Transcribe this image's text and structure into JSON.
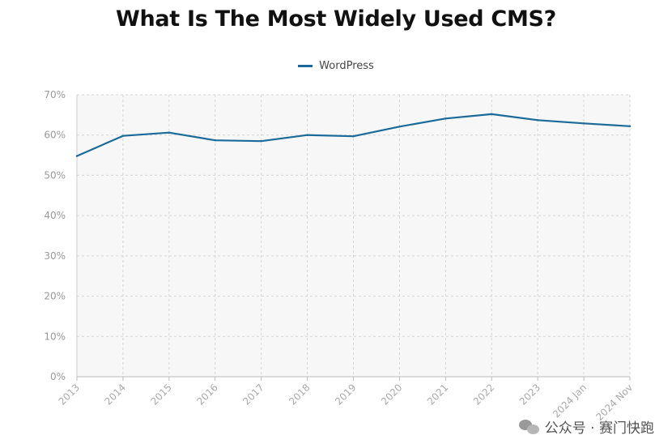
{
  "chart_data": {
    "type": "line",
    "title": "What Is The Most Widely Used CMS?",
    "categories": [
      "2013",
      "2014",
      "2015",
      "2016",
      "2017",
      "2018",
      "2019",
      "2020",
      "2021",
      "2022",
      "2023",
      "2024 Jan",
      "2024 Nov"
    ],
    "series": [
      {
        "name": "WordPress",
        "values": [
          54.8,
          59.8,
          60.6,
          58.7,
          58.5,
          60.0,
          59.7,
          62.1,
          64.1,
          65.2,
          63.7,
          62.9,
          62.2
        ],
        "color": "#1a6a9a"
      }
    ],
    "y_ticks": [
      "0%",
      "10%",
      "20%",
      "30%",
      "40%",
      "50%",
      "60%",
      "70%"
    ],
    "ylim": [
      0,
      70
    ],
    "y_unit": "%",
    "grid": true,
    "legend_position": "top-center",
    "plot_background": "#f7f7f7",
    "grid_color": "#d6d6d6"
  },
  "watermark": {
    "text": "公众号 · 赛门快跑",
    "icon": "wechat-icon"
  }
}
